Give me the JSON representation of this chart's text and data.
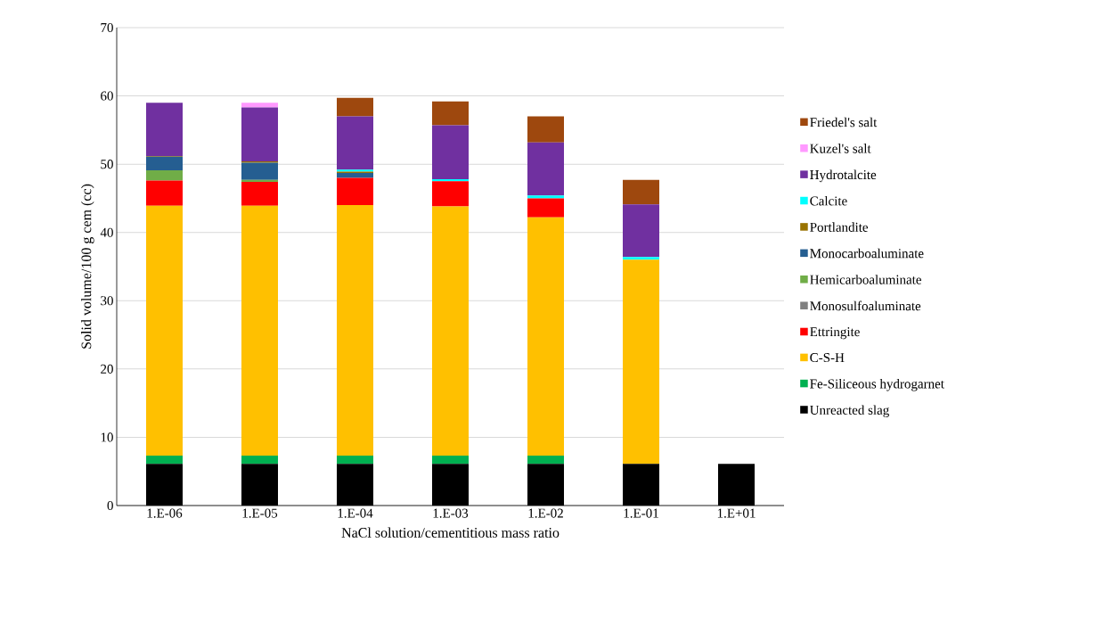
{
  "chart_data": {
    "type": "bar",
    "stacked": true,
    "xlabel": "NaCl solution/cementitious mass ratio",
    "ylabel": "Solid volume/100 g cem (cc)",
    "categories": [
      "1.E-06",
      "1.E-05",
      "1.E-04",
      "1.E-03",
      "1.E-02",
      "1.E-01",
      "1.E+01"
    ],
    "ylim": [
      0,
      70
    ],
    "yticks": [
      0,
      10,
      20,
      30,
      40,
      50,
      60,
      70
    ],
    "grid": "y",
    "legend": "right",
    "series": [
      {
        "name": "Unreacted slag",
        "color": "#000000",
        "values": [
          6.1,
          6.1,
          6.1,
          6.1,
          6.1,
          6.1,
          6.1
        ]
      },
      {
        "name": "Fe-Siliceous hydrogarnet",
        "color": "#00b050",
        "values": [
          1.2,
          1.2,
          1.2,
          1.2,
          1.2,
          0,
          0
        ]
      },
      {
        "name": "C-S-H",
        "color": "#ffc000",
        "values": [
          36.6,
          36.6,
          36.7,
          36.5,
          34.9,
          29.9,
          0
        ]
      },
      {
        "name": "Ettringite",
        "color": "#ff0000",
        "values": [
          3.7,
          3.5,
          4.0,
          3.7,
          2.8,
          0,
          0
        ]
      },
      {
        "name": "Monosulfoaluminate",
        "color": "#808080",
        "values": [
          0,
          0,
          0,
          0,
          0,
          0,
          0
        ]
      },
      {
        "name": "Hemicarboaluminate",
        "color": "#70ad47",
        "values": [
          1.5,
          0.3,
          0,
          0,
          0,
          0,
          0
        ]
      },
      {
        "name": "Monocarboaluminate",
        "color": "#255e91",
        "values": [
          2.0,
          2.5,
          0.7,
          0,
          0,
          0,
          0
        ]
      },
      {
        "name": "Portlandite",
        "color": "#997300",
        "values": [
          0.1,
          0.2,
          0.2,
          null,
          0,
          0,
          0
        ]
      },
      {
        "name": "Calcite",
        "color": "#00ffff",
        "values": [
          0,
          0,
          0.3,
          0.3,
          0.4,
          0.4,
          0
        ]
      },
      {
        "name": "Hydrotalcite",
        "color": "#7030a0",
        "values": [
          7.8,
          7.9,
          7.8,
          7.9,
          7.8,
          7.7,
          0
        ]
      },
      {
        "name": "Kuzel's salt",
        "color": "#ff99ff",
        "values": [
          0,
          0.7,
          0,
          0,
          0,
          0,
          0
        ]
      },
      {
        "name": "Friedel's salt",
        "color": "#9e480e",
        "values": [
          0,
          0,
          2.7,
          3.5,
          3.8,
          3.6,
          0
        ]
      }
    ]
  }
}
